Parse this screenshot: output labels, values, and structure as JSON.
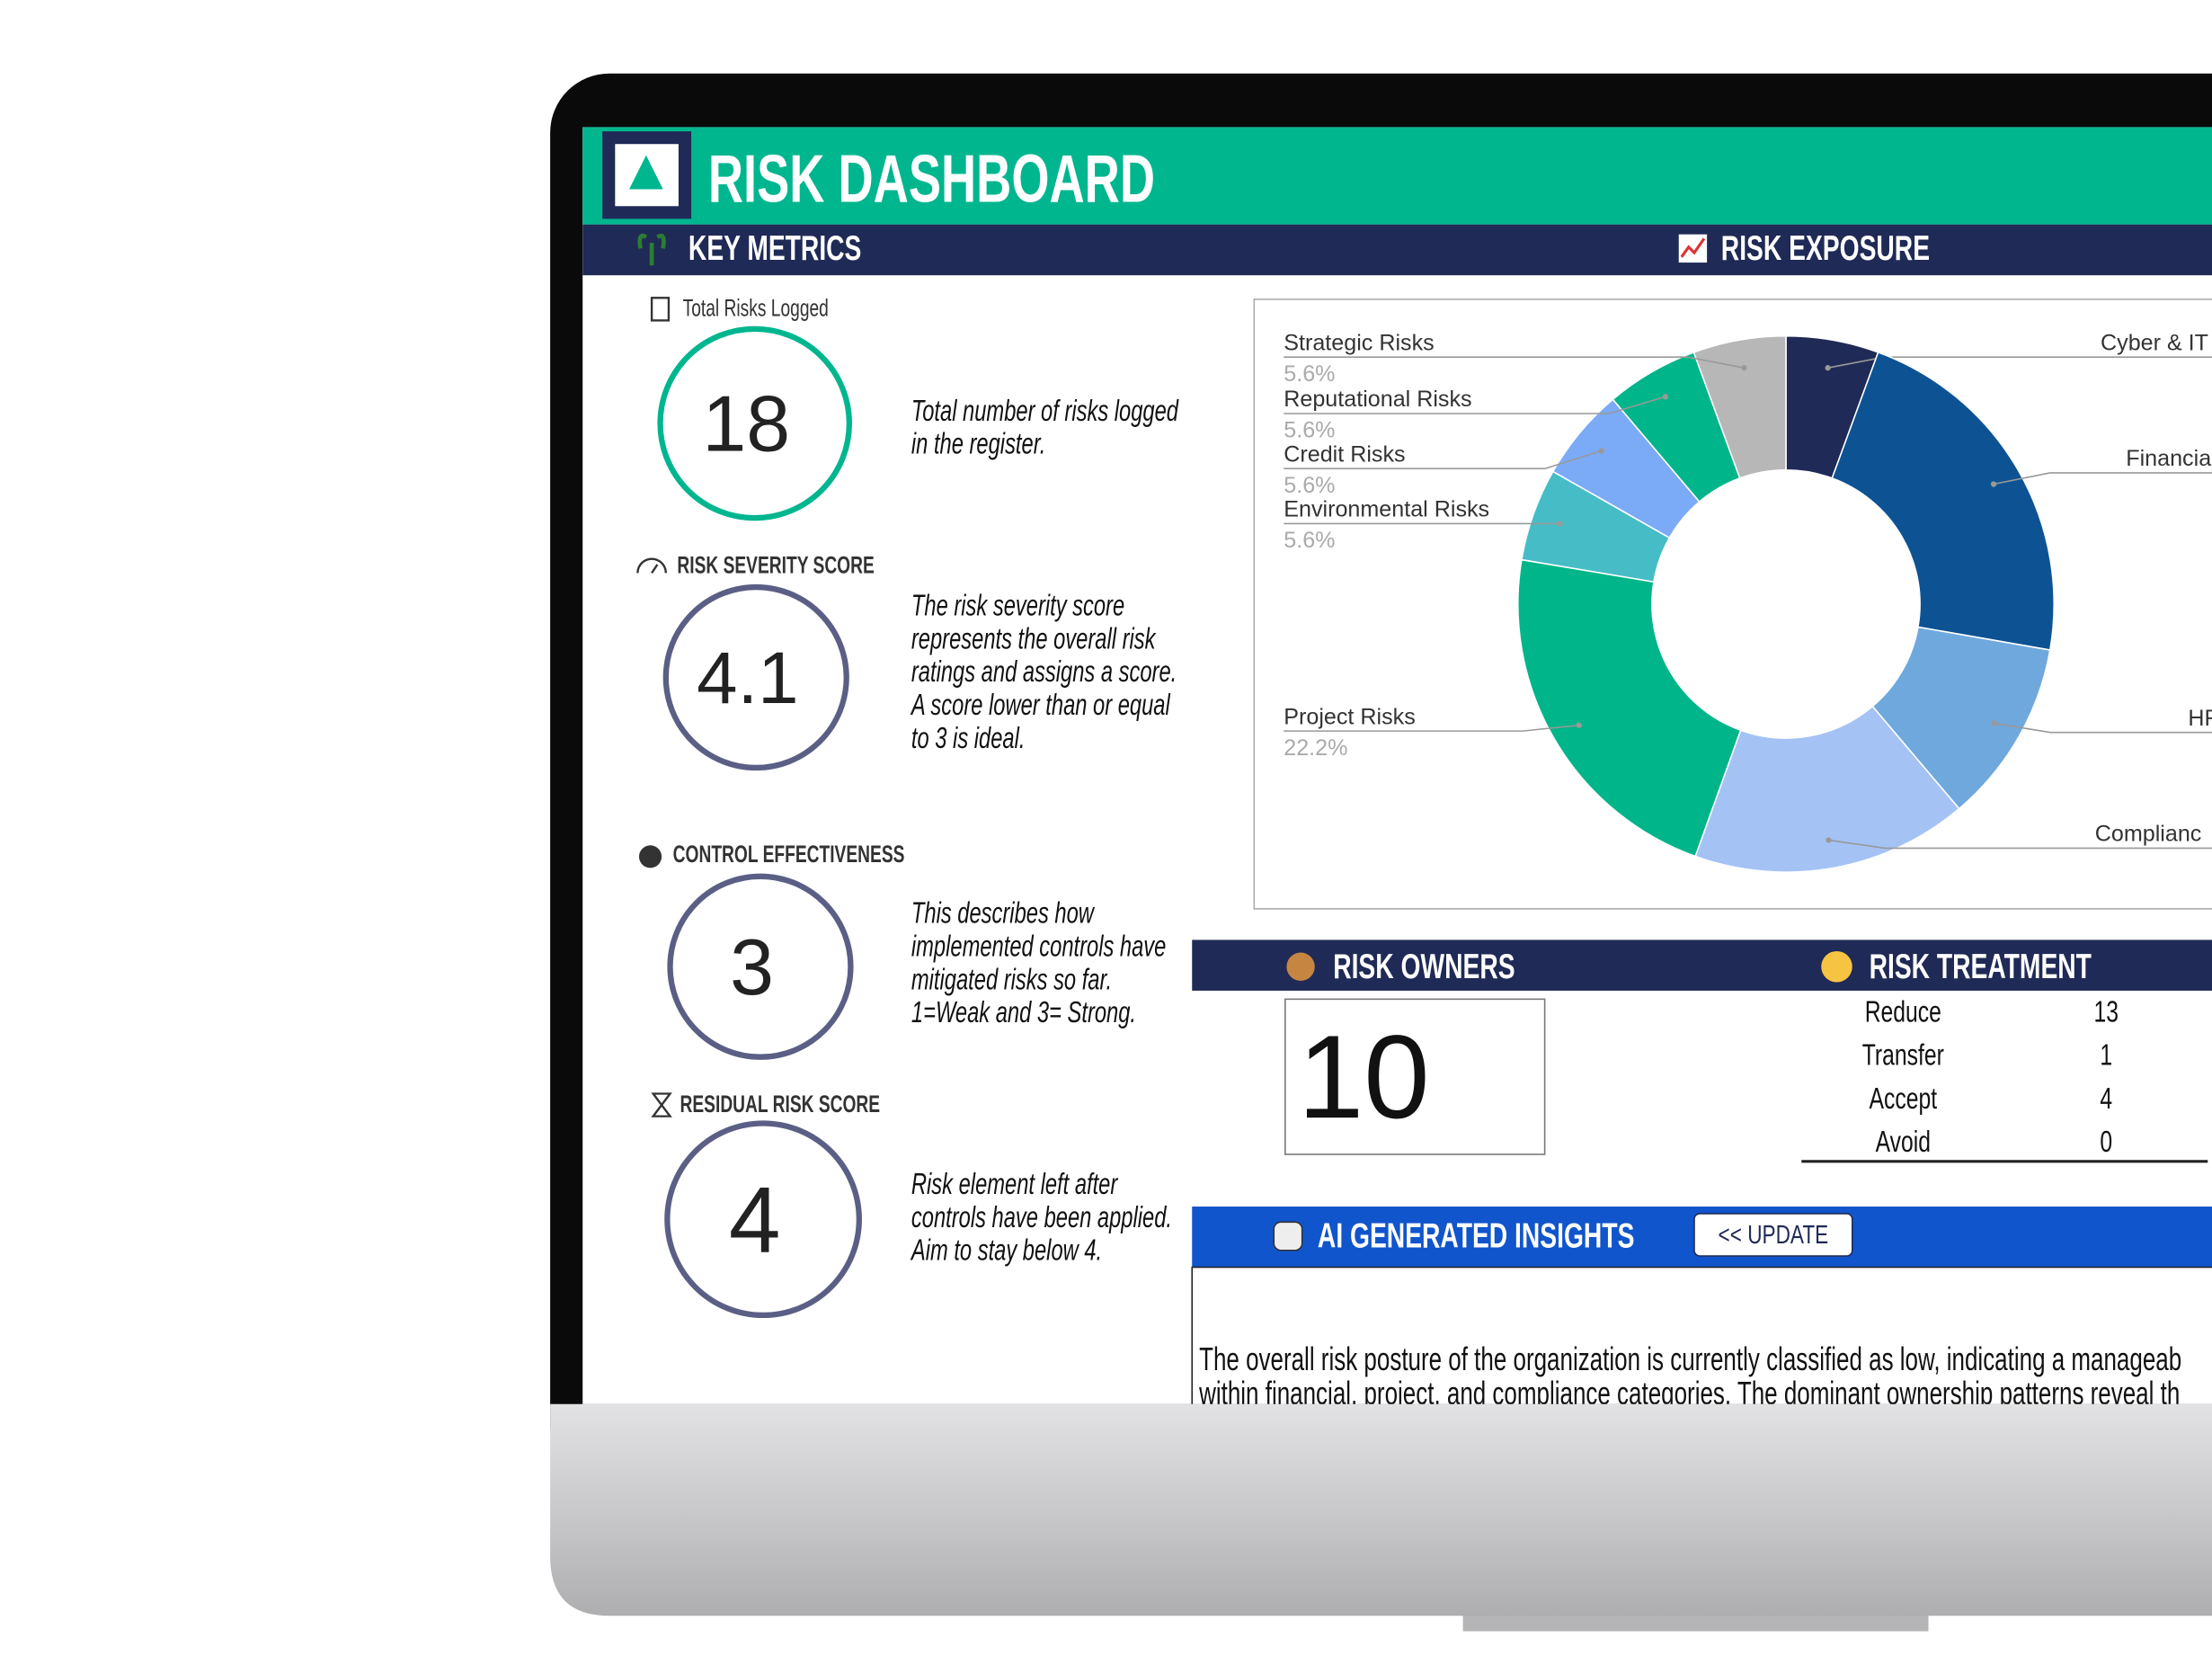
{
  "header": {
    "title": "RISK DASHBOARD"
  },
  "sections": {
    "key_metrics": "KEY METRICS",
    "risk_exposure": "RISK EXPOSURE",
    "risk_owners": "RISK OWNERS",
    "risk_treatment": "RISK TREATMENT",
    "ai_insights": "AI GENERATED INSIGHTS"
  },
  "key_metrics": [
    {
      "label": "Total Risks Logged",
      "value": 18,
      "description": [
        "Total number of risks logged",
        "in the register."
      ]
    },
    {
      "label": "RISK SEVERITY SCORE",
      "value": 4.1,
      "description": [
        "The risk severity score",
        "represents the overall risk",
        "ratings and assigns a score.",
        "A score lower than or equal",
        "to 3 is ideal."
      ]
    },
    {
      "label": "CONTROL EFFECTIVENESS",
      "value": 3,
      "description": [
        "This describes how",
        "implemented controls have",
        "mitigated risks so far.",
        "1=Weak and 3= Strong."
      ]
    },
    {
      "label": "RESIDUAL RISK SCORE",
      "value": 4,
      "description": [
        "Risk element left after",
        "controls have been applied.",
        "Aim to stay below 4."
      ]
    }
  ],
  "chart_data": {
    "type": "pie",
    "donut": true,
    "categories": [
      "Cyber & IT",
      "Financia",
      "HR",
      "Complianc",
      "Project Risks",
      "Environmental Risks",
      "Credit Risks",
      "Reputational Risks",
      "Strategic Risks"
    ],
    "values": [
      5.6,
      22.2,
      11.1,
      16.7,
      22.2,
      5.6,
      5.6,
      5.6,
      5.6
    ],
    "value_labels": [
      null,
      null,
      null,
      null,
      "22.2%",
      "5.6%",
      "5.6%",
      "5.6%",
      "5.6%"
    ],
    "colors": [
      "#1f2a56",
      "#0d5394",
      "#6fa8dc",
      "#a4c2f4",
      "#00b589",
      "#46bdc6",
      "#7baaf7",
      "#00b589",
      "#b7b7b7"
    ]
  },
  "risk_owners": {
    "value": 10
  },
  "risk_treatment": {
    "rows": [
      [
        "Reduce",
        13
      ],
      [
        "Transfer",
        1
      ],
      [
        "Accept",
        4
      ],
      [
        "Avoid",
        0
      ]
    ]
  },
  "ai_insights": {
    "button": "<< UPDATE",
    "text": [
      "The overall risk posture of the organization is currently classified as low, indicating a manageab",
      "within financial, project, and compliance categories. The dominant ownership patterns reveal th"
    ]
  }
}
